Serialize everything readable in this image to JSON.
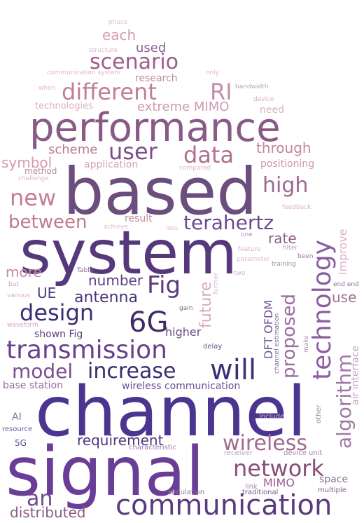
{
  "words": [
    {
      "text": "channel",
      "color": "#4a3590"
    },
    {
      "text": "signal",
      "color": "#6a3e96"
    },
    {
      "text": "system",
      "color": "#55397a"
    },
    {
      "text": "based",
      "color": "#6b4e7e"
    },
    {
      "text": "performance",
      "color": "#8a5a86"
    },
    {
      "text": "communication",
      "color": "#5a3a7e"
    },
    {
      "text": "transmission",
      "color": "#6a3f8e"
    },
    {
      "text": "network",
      "color": "#8a4f78"
    },
    {
      "text": "wireless",
      "color": "#a26a8c"
    },
    {
      "text": "will",
      "color": "#3e2f78"
    },
    {
      "text": "increase",
      "color": "#3a2d6e"
    },
    {
      "text": "design",
      "color": "#3b2e72"
    },
    {
      "text": "6G",
      "color": "#3f2c66"
    },
    {
      "text": "Fig",
      "color": "#5a3c7a"
    },
    {
      "text": "data",
      "color": "#b07090"
    },
    {
      "text": "user",
      "color": "#7c4f8a"
    },
    {
      "text": "different",
      "color": "#c07f98"
    },
    {
      "text": "RI",
      "color": "#c68fa8"
    },
    {
      "text": "scenario",
      "color": "#9c5e8a"
    },
    {
      "text": "high",
      "color": "#a06890"
    },
    {
      "text": "new",
      "color": "#c57e92"
    },
    {
      "text": "between",
      "color": "#c07a90"
    },
    {
      "text": "terahertz",
      "color": "#6e4890"
    },
    {
      "text": "model",
      "color": "#7a4f90"
    },
    {
      "text": "an",
      "color": "#6e4a8a"
    },
    {
      "text": "distributed",
      "color": "#8a5a88"
    },
    {
      "text": "technology",
      "color": "#8c5ea0"
    },
    {
      "text": "algorithm",
      "color": "#a07aa4"
    },
    {
      "text": "proposed",
      "color": "#9a6ca0"
    },
    {
      "text": "future",
      "color": "#d8a8c4"
    },
    {
      "text": "requirement",
      "color": "#4e3682"
    },
    {
      "text": "antenna",
      "color": "#4a3478"
    },
    {
      "text": "number",
      "color": "#5e3f84"
    },
    {
      "text": "more",
      "color": "#c78aa4"
    },
    {
      "text": "UE",
      "color": "#4a3a80"
    },
    {
      "text": "rate",
      "color": "#8e5c88"
    },
    {
      "text": "use",
      "color": "#a0708c"
    },
    {
      "text": "through",
      "color": "#c585a2"
    },
    {
      "text": "extreme MIMO",
      "color": "#cf9ab4"
    },
    {
      "text": "each",
      "color": "#d69cb4"
    },
    {
      "text": "used",
      "color": "#8a6298"
    },
    {
      "text": "symbol",
      "color": "#d898b0"
    },
    {
      "text": "scheme",
      "color": "#ba7a96"
    },
    {
      "text": "result",
      "color": "#c08a9c"
    },
    {
      "text": "shown Fig",
      "color": "#5c3f80"
    },
    {
      "text": "higher",
      "color": "#6c4e86"
    },
    {
      "text": "MIMO",
      "color": "#9e5e90"
    },
    {
      "text": "improve",
      "color": "#dbb0cc"
    },
    {
      "text": "DFT OFDM",
      "color": "#6a5296"
    },
    {
      "text": "positioning",
      "color": "#ce98b0"
    },
    {
      "text": "application",
      "color": "#d8a3b8"
    },
    {
      "text": "base station",
      "color": "#9a6ca0"
    },
    {
      "text": "wireless communication",
      "color": "#6a4e96"
    },
    {
      "text": "air interface",
      "color": "#c8a0c8"
    },
    {
      "text": "space",
      "color": "#8a7090"
    },
    {
      "text": "AI",
      "color": "#8a74a4"
    },
    {
      "text": "5G",
      "color": "#5a4898"
    },
    {
      "text": "method",
      "color": "#b88aa0"
    },
    {
      "text": "research",
      "color": "#c08aa0"
    },
    {
      "text": "technologies",
      "color": "#ddb0c0"
    },
    {
      "text": "need",
      "color": "#dfb0c4"
    },
    {
      "text": "multiple",
      "color": "#7a6288"
    },
    {
      "text": "simulation",
      "color": "#8c7a90"
    },
    {
      "text": "traditional",
      "color": "#70608a"
    },
    {
      "text": "link",
      "color": "#a890a8"
    },
    {
      "text": "receiver",
      "color": "#b8a0b8"
    },
    {
      "text": "device unit",
      "color": "#9a88a8"
    },
    {
      "text": "characteristic",
      "color": "#9a7aa8"
    },
    {
      "text": "resource",
      "color": "#6a5a9a"
    },
    {
      "text": "include",
      "color": "#d3a8c8"
    },
    {
      "text": "other",
      "color": "#a08898"
    },
    {
      "text": "make",
      "color": "#a890b0"
    },
    {
      "text": "channel estimation",
      "color": "#7a6890"
    },
    {
      "text": "delay",
      "color": "#6a5090"
    },
    {
      "text": "gain",
      "color": "#7a6a80"
    },
    {
      "text": "waveform",
      "color": "#d8a0c0"
    },
    {
      "text": "various",
      "color": "#d8b0c0"
    },
    {
      "text": "but",
      "color": "#c4a0b4"
    },
    {
      "text": "Table",
      "color": "#8a6a90"
    },
    {
      "text": "further",
      "color": "#e0b8d0"
    },
    {
      "text": "two",
      "color": "#d8b0c8"
    },
    {
      "text": "training",
      "color": "#a090a0"
    },
    {
      "text": "parameter",
      "color": "#e0bed0"
    },
    {
      "text": "been",
      "color": "#9a7a98"
    },
    {
      "text": "end end",
      "color": "#8a6a98"
    },
    {
      "text": "filter",
      "color": "#b8a4bc"
    },
    {
      "text": "feature",
      "color": "#dcb0c4"
    },
    {
      "text": "one",
      "color": "#b090c0"
    },
    {
      "text": "loss",
      "color": "#e0b8c8"
    },
    {
      "text": "achieve",
      "color": "#e0b8c8"
    },
    {
      "text": "feedback",
      "color": "#e0b0c4"
    },
    {
      "text": "compared",
      "color": "#e0b8c8"
    },
    {
      "text": "challenge",
      "color": "#e0b8c8"
    },
    {
      "text": "bandwidth",
      "color": "#b8a0b8"
    },
    {
      "text": "device",
      "color": "#d8b0c4"
    },
    {
      "text": "communication system",
      "color": "#e0b8c8"
    },
    {
      "text": "only",
      "color": "#e0b8c8"
    },
    {
      "text": "when",
      "color": "#e0b8c8"
    },
    {
      "text": "structure",
      "color": "#e0b8c8"
    },
    {
      "text": "phase",
      "color": "#e4c0d0"
    }
  ]
}
